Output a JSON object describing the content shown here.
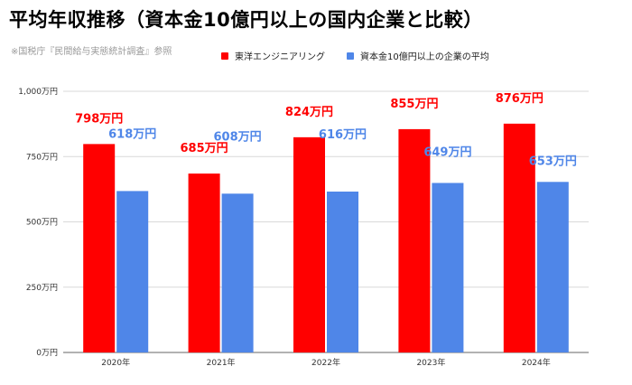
{
  "title": "平均年収推移（資本金10億円以上の国内企業と比較）",
  "source": "※国税庁『民間給与実態統計調査』参照",
  "colors": {
    "company": "#ff0000",
    "average": "#4f86e8",
    "grid": "#d9d9d9",
    "axis": "#666666"
  },
  "chart_data": {
    "type": "bar",
    "categories": [
      "2020年",
      "2021年",
      "2022年",
      "2023年",
      "2024年"
    ],
    "series": [
      {
        "name": "東洋エンジニアリング",
        "values": [
          798,
          685,
          824,
          855,
          876
        ],
        "labels": [
          "798万円",
          "685万円",
          "824万円",
          "855万円",
          "876万円"
        ],
        "color": "#ff0000"
      },
      {
        "name": "資本金10億円以上の企業の平均",
        "values": [
          618,
          608,
          616,
          649,
          653
        ],
        "labels": [
          "618万円",
          "608万円",
          "616万円",
          "649万円",
          "653万円"
        ],
        "color": "#4f86e8"
      }
    ],
    "ylim": [
      0,
      1000
    ],
    "yticks": [
      {
        "value": 0,
        "label": "0万円"
      },
      {
        "value": 250,
        "label": "250万円"
      },
      {
        "value": 500,
        "label": "500万円"
      },
      {
        "value": 750,
        "label": "750万円"
      },
      {
        "value": 1000,
        "label": "1,000万円"
      }
    ],
    "grid": true,
    "legend": "top",
    "xlabel": "",
    "ylabel": ""
  }
}
